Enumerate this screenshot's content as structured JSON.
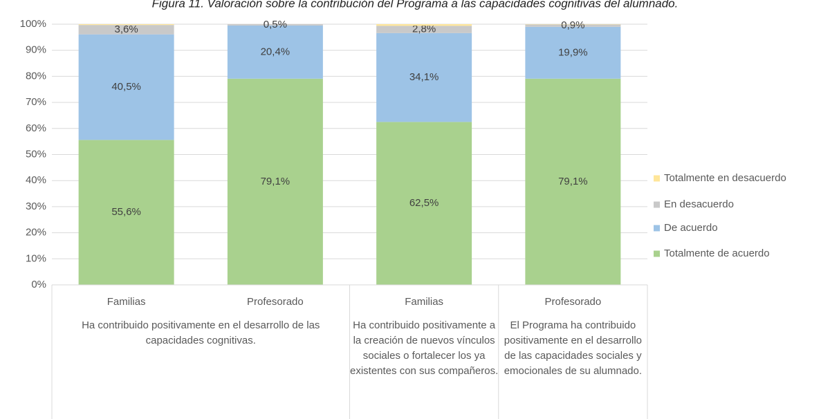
{
  "chart_data": {
    "type": "stacked_bar",
    "title": "Figura 11. Valoración sobre la contribución del Programa a las capacidades cognitivas del alumnado.",
    "category_groups": [
      {
        "label": "Ha contribuido positivamente en el desarrollo de las capacidades cognitivas.",
        "categories": [
          "Familias",
          "Profesorado"
        ]
      },
      {
        "label": "Ha contribuido positivamente a la creación de nuevos vínculos sociales o fortalecer los ya existentes con sus compañeros.",
        "categories": [
          "Familias"
        ]
      },
      {
        "label": "El Programa ha contribuido positivamente en el desarrollo de las capacidades sociales y emocionales de su alumnado.",
        "categories": [
          "Profesorado"
        ]
      }
    ],
    "series": [
      {
        "name": "Totalmente de acuerdo",
        "color": "#a9d18e",
        "values": [
          55.6,
          79.1,
          62.5,
          79.1
        ],
        "value_labels": [
          "55,6%",
          "79,1%",
          "62,5%",
          "79,1%"
        ]
      },
      {
        "name": "De acuerdo",
        "color": "#9dc3e6",
        "values": [
          40.5,
          20.4,
          34.1,
          19.9
        ],
        "value_labels": [
          "40,5%",
          "20,4%",
          "34,1%",
          "19,9%"
        ]
      },
      {
        "name": "En desacuerdo",
        "color": "#c9c9c9",
        "values": [
          3.6,
          0.5,
          2.8,
          0.9
        ],
        "value_labels": [
          "3,6%",
          "0,5%",
          "2,8%",
          "0,9%"
        ]
      },
      {
        "name": "Totalmente en desacuerdo",
        "color": "#ffe699",
        "values": [
          0.3,
          0,
          0.6,
          0.1
        ]
      }
    ],
    "ylim": [
      0,
      100
    ],
    "yticks": [
      {
        "value": 0,
        "label": "0%"
      },
      {
        "value": 10,
        "label": "10%"
      },
      {
        "value": 20,
        "label": "20%"
      },
      {
        "value": 30,
        "label": "30%"
      },
      {
        "value": 40,
        "label": "40%"
      },
      {
        "value": 50,
        "label": "50%"
      },
      {
        "value": 60,
        "label": "60%"
      },
      {
        "value": 70,
        "label": "70%"
      },
      {
        "value": 80,
        "label": "80%"
      },
      {
        "value": 90,
        "label": "90%"
      },
      {
        "value": 100,
        "label": "100%"
      }
    ],
    "grid": true,
    "legend": "right"
  }
}
